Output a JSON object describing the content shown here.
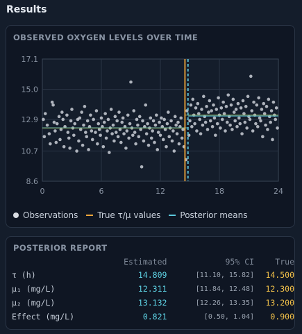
{
  "page": {
    "title": "Results"
  },
  "chart_panel": {
    "title": "OBSERVED OXYGEN LEVELS OVER TIME",
    "legend": [
      {
        "label": "Observations",
        "kind": "dot",
        "color": "#d9dde3"
      },
      {
        "label": "True τ/μ values",
        "kind": "line",
        "color": "#f0a63a"
      },
      {
        "label": "Posterior means",
        "kind": "line",
        "color": "#5cc8dc"
      }
    ]
  },
  "chart_data": {
    "type": "scatter",
    "xlim": [
      0,
      24
    ],
    "ylim": [
      8.6,
      17.1
    ],
    "x_ticks": [
      "0",
      "6",
      "12",
      "18",
      "24"
    ],
    "y_ticks": [
      "17.1",
      "15.0",
      "12.9",
      "10.7",
      "8.6"
    ],
    "y_tick_values": [
      17.1,
      15.0,
      12.9,
      10.7,
      8.6
    ],
    "grid": true,
    "legend_position": "bottom",
    "series_colors": {
      "observations": "#c9ced6",
      "true": "#f0a63a",
      "posterior": "#5cc8dc",
      "true_mean_line": "#9bb86a"
    },
    "true_tau": 14.5,
    "true_mu1": 12.3,
    "true_mu2": 13.2,
    "posterior_tau": 14.809,
    "posterior_mu1": 12.311,
    "posterior_mu2": 13.132,
    "points": [
      [
        0.1,
        12.9
      ],
      [
        0.2,
        11.7
      ],
      [
        0.3,
        13.3
      ],
      [
        0.5,
        12.5
      ],
      [
        0.7,
        11.9
      ],
      [
        0.8,
        11.2
      ],
      [
        1.0,
        14.1
      ],
      [
        1.1,
        13.9
      ],
      [
        1.2,
        12.7
      ],
      [
        1.3,
        12.1
      ],
      [
        1.4,
        11.3
      ],
      [
        1.5,
        12.6
      ],
      [
        1.7,
        13.1
      ],
      [
        1.8,
        11.5
      ],
      [
        1.9,
        12.2
      ],
      [
        2.0,
        13.4
      ],
      [
        2.1,
        12.9
      ],
      [
        2.2,
        11.0
      ],
      [
        2.3,
        12.4
      ],
      [
        2.5,
        13.2
      ],
      [
        2.6,
        12.0
      ],
      [
        2.7,
        11.6
      ],
      [
        2.8,
        10.9
      ],
      [
        2.9,
        12.8
      ],
      [
        3.0,
        13.6
      ],
      [
        3.1,
        12.3
      ],
      [
        3.2,
        11.8
      ],
      [
        3.3,
        12.6
      ],
      [
        3.5,
        10.7
      ],
      [
        3.6,
        12.9
      ],
      [
        3.7,
        11.4
      ],
      [
        3.8,
        13.0
      ],
      [
        3.9,
        12.2
      ],
      [
        4.0,
        13.4
      ],
      [
        4.1,
        11.1
      ],
      [
        4.2,
        12.5
      ],
      [
        4.3,
        13.8
      ],
      [
        4.4,
        12.0
      ],
      [
        4.5,
        11.7
      ],
      [
        4.6,
        12.8
      ],
      [
        4.7,
        10.8
      ],
      [
        4.8,
        12.4
      ],
      [
        4.9,
        13.2
      ],
      [
        5.0,
        12.1
      ],
      [
        5.1,
        11.5
      ],
      [
        5.2,
        12.9
      ],
      [
        5.4,
        12.0
      ],
      [
        5.5,
        13.5
      ],
      [
        5.6,
        11.2
      ],
      [
        5.7,
        12.6
      ],
      [
        5.8,
        12.2
      ],
      [
        5.9,
        11.8
      ],
      [
        6.0,
        13.0
      ],
      [
        6.1,
        12.4
      ],
      [
        6.2,
        11.0
      ],
      [
        6.3,
        12.7
      ],
      [
        6.4,
        13.3
      ],
      [
        6.5,
        11.6
      ],
      [
        6.6,
        12.1
      ],
      [
        6.7,
        12.9
      ],
      [
        6.8,
        10.6
      ],
      [
        6.9,
        12.3
      ],
      [
        7.0,
        13.6
      ],
      [
        7.1,
        11.9
      ],
      [
        7.2,
        12.5
      ],
      [
        7.3,
        11.4
      ],
      [
        7.4,
        13.1
      ],
      [
        7.5,
        12.0
      ],
      [
        7.6,
        12.8
      ],
      [
        7.7,
        11.7
      ],
      [
        7.8,
        13.4
      ],
      [
        7.9,
        12.2
      ],
      [
        8.0,
        11.3
      ],
      [
        8.1,
        12.7
      ],
      [
        8.2,
        13.0
      ],
      [
        8.3,
        11.9
      ],
      [
        8.4,
        12.4
      ],
      [
        8.5,
        10.9
      ],
      [
        8.6,
        12.1
      ],
      [
        8.7,
        13.2
      ],
      [
        8.8,
        11.6
      ],
      [
        8.9,
        12.6
      ],
      [
        9.0,
        15.5
      ],
      [
        9.1,
        12.3
      ],
      [
        9.2,
        11.8
      ],
      [
        9.3,
        13.5
      ],
      [
        9.4,
        12.0
      ],
      [
        9.5,
        11.2
      ],
      [
        9.6,
        12.9
      ],
      [
        9.7,
        12.5
      ],
      [
        9.8,
        11.7
      ],
      [
        9.9,
        13.1
      ],
      [
        10.0,
        12.2
      ],
      [
        10.1,
        9.6
      ],
      [
        10.2,
        12.8
      ],
      [
        10.3,
        11.4
      ],
      [
        10.4,
        12.4
      ],
      [
        10.5,
        13.9
      ],
      [
        10.6,
        11.9
      ],
      [
        10.7,
        12.6
      ],
      [
        10.8,
        11.1
      ],
      [
        10.9,
        12.3
      ],
      [
        11.0,
        13.0
      ],
      [
        11.1,
        11.6
      ],
      [
        11.2,
        12.1
      ],
      [
        11.3,
        12.8
      ],
      [
        11.4,
        11.3
      ],
      [
        11.5,
        12.5
      ],
      [
        11.6,
        13.2
      ],
      [
        11.7,
        10.8
      ],
      [
        11.8,
        12.0
      ],
      [
        11.9,
        12.7
      ],
      [
        12.0,
        11.8
      ],
      [
        12.1,
        13.0
      ],
      [
        12.2,
        12.4
      ],
      [
        12.3,
        11.5
      ],
      [
        12.4,
        12.9
      ],
      [
        12.5,
        12.2
      ],
      [
        12.6,
        11.0
      ],
      [
        12.7,
        12.6
      ],
      [
        12.8,
        13.4
      ],
      [
        12.9,
        11.7
      ],
      [
        13.0,
        12.3
      ],
      [
        13.1,
        12.8
      ],
      [
        13.2,
        11.4
      ],
      [
        13.3,
        12.1
      ],
      [
        13.4,
        10.7
      ],
      [
        13.5,
        13.1
      ],
      [
        13.6,
        12.5
      ],
      [
        13.7,
        11.9
      ],
      [
        13.8,
        12.7
      ],
      [
        13.9,
        11.2
      ],
      [
        14.0,
        12.4
      ],
      [
        14.1,
        13.0
      ],
      [
        14.2,
        11.6
      ],
      [
        14.3,
        12.2
      ],
      [
        14.4,
        11.0
      ],
      [
        14.6,
        10.1
      ],
      [
        14.7,
        13.5
      ],
      [
        14.9,
        11.8
      ],
      [
        15.0,
        12.8
      ],
      [
        15.1,
        13.9
      ],
      [
        15.2,
        12.4
      ],
      [
        15.3,
        14.3
      ],
      [
        15.4,
        13.2
      ],
      [
        15.5,
        12.6
      ],
      [
        15.6,
        13.7
      ],
      [
        15.7,
        12.1
      ],
      [
        15.8,
        14.0
      ],
      [
        15.9,
        13.3
      ],
      [
        16.0,
        12.9
      ],
      [
        16.1,
        11.9
      ],
      [
        16.2,
        13.6
      ],
      [
        16.3,
        12.5
      ],
      [
        16.4,
        14.5
      ],
      [
        16.5,
        13.1
      ],
      [
        16.6,
        12.7
      ],
      [
        16.7,
        13.8
      ],
      [
        16.8,
        12.2
      ],
      [
        16.9,
        13.4
      ],
      [
        17.0,
        14.2
      ],
      [
        17.1,
        12.8
      ],
      [
        17.2,
        13.5
      ],
      [
        17.3,
        12.4
      ],
      [
        17.4,
        13.9
      ],
      [
        17.5,
        13.0
      ],
      [
        17.6,
        11.8
      ],
      [
        17.7,
        13.6
      ],
      [
        17.8,
        12.6
      ],
      [
        17.9,
        14.4
      ],
      [
        18.0,
        13.2
      ],
      [
        18.1,
        12.3
      ],
      [
        18.2,
        13.7
      ],
      [
        18.3,
        12.9
      ],
      [
        18.4,
        14.1
      ],
      [
        18.5,
        13.3
      ],
      [
        18.6,
        12.1
      ],
      [
        18.7,
        13.8
      ],
      [
        18.8,
        12.7
      ],
      [
        18.9,
        14.6
      ],
      [
        19.0,
        13.1
      ],
      [
        19.1,
        12.5
      ],
      [
        19.2,
        13.9
      ],
      [
        19.3,
        12.2
      ],
      [
        19.4,
        14.3
      ],
      [
        19.5,
        13.4
      ],
      [
        19.6,
        12.8
      ],
      [
        19.7,
        13.6
      ],
      [
        19.8,
        12.4
      ],
      [
        19.9,
        14.0
      ],
      [
        20.0,
        13.0
      ],
      [
        20.1,
        12.6
      ],
      [
        20.2,
        13.7
      ],
      [
        20.3,
        11.9
      ],
      [
        20.4,
        14.2
      ],
      [
        20.5,
        13.3
      ],
      [
        20.6,
        12.7
      ],
      [
        20.7,
        13.8
      ],
      [
        20.8,
        12.3
      ],
      [
        20.9,
        14.5
      ],
      [
        21.0,
        13.1
      ],
      [
        21.1,
        12.9
      ],
      [
        21.2,
        15.9
      ],
      [
        21.3,
        13.5
      ],
      [
        21.4,
        12.1
      ],
      [
        21.5,
        14.1
      ],
      [
        21.6,
        13.2
      ],
      [
        21.7,
        12.6
      ],
      [
        21.8,
        13.9
      ],
      [
        21.9,
        12.4
      ],
      [
        22.0,
        14.4
      ],
      [
        22.1,
        13.0
      ],
      [
        22.2,
        12.8
      ],
      [
        22.3,
        13.6
      ],
      [
        22.4,
        11.7
      ],
      [
        22.5,
        14.0
      ],
      [
        22.6,
        13.3
      ],
      [
        22.7,
        12.5
      ],
      [
        22.8,
        13.8
      ],
      [
        22.9,
        12.2
      ],
      [
        23.0,
        14.3
      ],
      [
        23.1,
        13.1
      ],
      [
        23.2,
        12.7
      ],
      [
        23.3,
        13.5
      ],
      [
        23.4,
        11.5
      ],
      [
        23.5,
        14.1
      ],
      [
        23.6,
        13.2
      ],
      [
        23.7,
        12.9
      ],
      [
        23.8,
        13.7
      ],
      [
        23.9,
        12.3
      ]
    ]
  },
  "report_panel": {
    "title": "POSTERIOR REPORT",
    "headers": {
      "estimated": "Estimated",
      "ci": "95% CI",
      "true": "True"
    },
    "rows": [
      {
        "label": "τ (h)",
        "estimated": "14.809",
        "ci": "[11.10, 15.82]",
        "true": "14.500"
      },
      {
        "label": "μ₁ (mg/L)",
        "estimated": "12.311",
        "ci": "[11.84, 12.48]",
        "true": "12.300"
      },
      {
        "label": "μ₂ (mg/L)",
        "estimated": "13.132",
        "ci": "[12.26, 13.35]",
        "true": "13.200"
      },
      {
        "label": "Effect (mg/L)",
        "estimated": "0.821",
        "ci": "[0.50, 1.04]",
        "true": "0.900"
      }
    ]
  }
}
